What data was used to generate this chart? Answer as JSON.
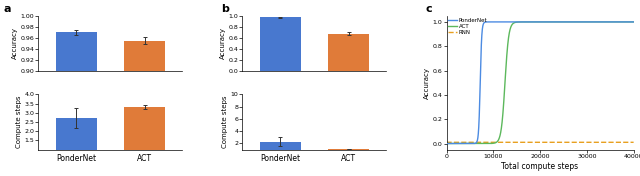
{
  "panel_a": {
    "label": "a",
    "accuracy": {
      "pondernet_val": 0.97,
      "pondernet_err": 0.004,
      "act_val": 0.955,
      "act_err": 0.006,
      "ylim": [
        -0.96,
        -0.9
      ],
      "ylim_real": [
        0.9,
        1.0
      ],
      "yticks": [
        0.9,
        0.92,
        0.94,
        0.96,
        0.98,
        1.0
      ],
      "ylabel": "Accuracy"
    },
    "compute": {
      "pondernet_val": 2.7,
      "pondernet_err": 0.55,
      "act_val": 3.3,
      "act_err": 0.1,
      "ylim": [
        1.0,
        4.0
      ],
      "yticks": [
        1.5,
        2.0,
        2.5,
        3.0,
        3.5,
        4.0
      ],
      "ylabel": "Compute steps"
    }
  },
  "panel_b": {
    "label": "b",
    "accuracy": {
      "pondernet_val": 0.97,
      "pondernet_err": 0.005,
      "act_val": 0.68,
      "act_err": 0.02,
      "ylim_real": [
        0.0,
        1.0
      ],
      "yticks": [
        0.0,
        0.2,
        0.4,
        0.6,
        0.8,
        1.0
      ],
      "ylabel": "Accuracy"
    },
    "compute": {
      "pondernet_val": 2.3,
      "pondernet_err": 0.75,
      "act_val": 1.1,
      "act_err": 0.05,
      "ylim": [
        1.0,
        10.0
      ],
      "yticks": [
        2,
        4,
        6,
        8,
        10
      ],
      "ylabel": "Compute steps"
    }
  },
  "panel_c": {
    "label": "c",
    "xlabel": "Total compute steps",
    "ylabel": "Accuracy",
    "xlim": [
      0,
      40000
    ],
    "ylim": [
      -0.05,
      1.05
    ],
    "xticks": [
      0,
      10000,
      20000,
      30000,
      40000
    ],
    "xtick_labels": [
      "0",
      "10000",
      "20000",
      "30000",
      "40000"
    ],
    "yticks": [
      0.0,
      0.2,
      0.4,
      0.6,
      0.8,
      1.0
    ],
    "pondernet_color": "#4c8be2",
    "act_color": "#5cb85c",
    "rnn_color": "#e8a020",
    "pondernet_label": "PonderNet",
    "act_label": "ACT",
    "rnn_label": "RNN",
    "pondernet_inflect": 7200,
    "pondernet_sharpness": 0.006,
    "act_inflect": 12500,
    "act_sharpness": 0.0025
  },
  "bar_colors": {
    "pondernet": "#4878cf",
    "act": "#e07b39"
  },
  "figsize": [
    6.4,
    1.76
  ],
  "dpi": 100
}
